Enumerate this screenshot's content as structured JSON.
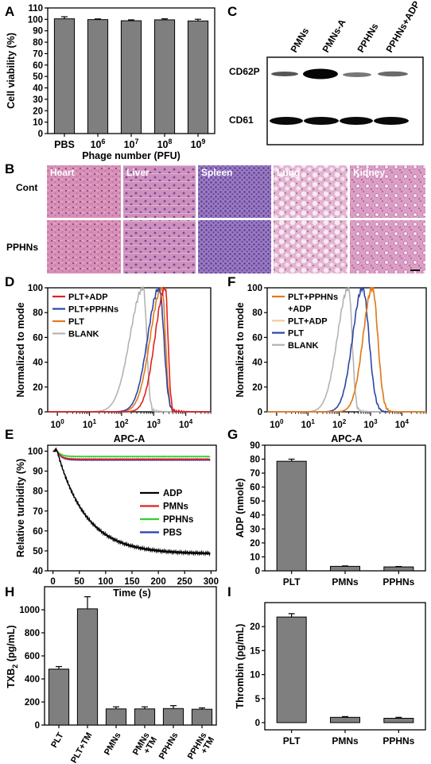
{
  "panels": {
    "A": "A",
    "B": "B",
    "C": "C",
    "D": "D",
    "E": "E",
    "F": "F",
    "G": "G",
    "H": "H",
    "I": "I"
  },
  "panel_c": {
    "lanes": [
      "PMNs",
      "PMNs-A",
      "PPHNs",
      "PPHNs+ADP"
    ],
    "rows": [
      "CD62P",
      "CD61"
    ]
  },
  "panel_b": {
    "rows": [
      "Cont",
      "PPHNs"
    ],
    "columns": [
      "Heart",
      "Liver",
      "Spleen",
      "Lung",
      "Kidney"
    ],
    "colors": {
      "he_pink": "#d98fb4",
      "he_purple": "#8a6bb8"
    }
  },
  "chart_data": [
    {
      "panel": "A",
      "type": "bar",
      "categories": [
        "PBS",
        "10^6",
        "10^7",
        "10^8",
        "10^9"
      ],
      "category_labels": [
        {
          "base": "PBS",
          "exp": ""
        },
        {
          "base": "10",
          "exp": "6"
        },
        {
          "base": "10",
          "exp": "7"
        },
        {
          "base": "10",
          "exp": "8"
        },
        {
          "base": "10",
          "exp": "9"
        }
      ],
      "values": [
        100.5,
        99.8,
        98.8,
        99.6,
        98.6
      ],
      "errors": [
        1.8,
        0.6,
        0.8,
        0.9,
        1.5
      ],
      "xlabel": "Phage number (PFU)",
      "ylabel": "Cell viability (%)",
      "ylim": [
        0,
        110
      ],
      "yticks": [
        0,
        10,
        20,
        30,
        40,
        50,
        60,
        70,
        80,
        90,
        100,
        110
      ]
    },
    {
      "panel": "D",
      "type": "line",
      "xlabel": "APC-A",
      "ylabel": "Normalized to mode",
      "xscale": "log",
      "xlim": [
        0.5,
        60000
      ],
      "ylim": [
        0,
        100
      ],
      "xtick_labels": [
        "10^0",
        "10^1",
        "10^2",
        "10^3",
        "10^4"
      ],
      "yticks": [
        0,
        20,
        40,
        60,
        80,
        100
      ],
      "legend": "top-left",
      "series": [
        {
          "name": "PLT+ADP",
          "color": "#e0211f",
          "peak": 2300,
          "sigma_l": 0.32,
          "sigma_r": 0.085
        },
        {
          "name": "PLT+PPHNs",
          "color": "#2c45a5",
          "peak": 1500,
          "sigma_l": 0.36,
          "sigma_r": 0.14
        },
        {
          "name": "PLT",
          "color": "#e07a1b",
          "peak": 1800,
          "sigma_l": 0.36,
          "sigma_r": 0.11
        },
        {
          "name": "BLANK",
          "color": "#b3b3b3",
          "peak": 480,
          "sigma_l": 0.42,
          "sigma_r": 0.1
        }
      ]
    },
    {
      "panel": "F",
      "type": "line",
      "xlabel": "APC-A",
      "ylabel": "Normalized to mode",
      "xscale": "log",
      "xlim": [
        0.5,
        60000
      ],
      "ylim": [
        0,
        100
      ],
      "xtick_labels": [
        "10^0",
        "10^1",
        "10^2",
        "10^3",
        "10^4"
      ],
      "yticks": [
        0,
        20,
        40,
        60,
        80,
        100
      ],
      "legend": "top-left",
      "legend_lines": [
        "PLT+PPHNs",
        "+ADP",
        "PLT+ADP",
        "PLT",
        "BLANK"
      ],
      "series": [
        {
          "name": "PLT+PPHNs +ADP",
          "color": "#e07a1b",
          "peak": 1150,
          "sigma_l": 0.3,
          "sigma_r": 0.17
        },
        {
          "name": "PLT+ADP",
          "color": "#f2c89a",
          "peak": 1150,
          "sigma_l": 0.3,
          "sigma_r": 0.17
        },
        {
          "name": "PLT",
          "color": "#2c45a5",
          "peak": 560,
          "sigma_l": 0.32,
          "sigma_r": 0.2
        },
        {
          "name": "BLANK",
          "color": "#b3b3b3",
          "peak": 200,
          "sigma_l": 0.36,
          "sigma_r": 0.11
        }
      ]
    },
    {
      "panel": "E",
      "type": "line",
      "xlabel": "Time (s)",
      "ylabel": "Relative turbidity (%)",
      "xlim": [
        -10,
        310
      ],
      "ylim": [
        40,
        103
      ],
      "xticks": [
        0,
        50,
        100,
        150,
        200,
        250,
        300
      ],
      "yticks": [
        40,
        50,
        60,
        70,
        80,
        90,
        100
      ],
      "legend": "center-right",
      "series": [
        {
          "name": "ADP",
          "color": "#000000",
          "start": 100,
          "plateau": 48.5,
          "tau": 55,
          "t_start": 8
        },
        {
          "name": "PMNs",
          "color": "#e0211f",
          "start": 100,
          "plateau": 96,
          "tau": 8,
          "t_start": 8
        },
        {
          "name": "PPHNs",
          "color": "#2fd22f",
          "start": 100,
          "plateau": 97.3,
          "tau": 8,
          "t_start": 8
        },
        {
          "name": "PBS",
          "color": "#2a3ab5",
          "start": 100,
          "plateau": 95.6,
          "tau": 8,
          "t_start": 8
        }
      ]
    },
    {
      "panel": "G",
      "type": "bar",
      "categories": [
        "PLT",
        "PMNs",
        "PPHNs"
      ],
      "values": [
        78.5,
        3.2,
        2.8
      ],
      "errors": [
        1.5,
        0.3,
        0.3
      ],
      "ylabel": "ADP (nmole)",
      "ylim": [
        0,
        90
      ],
      "yticks": [
        0,
        10,
        20,
        30,
        40,
        50,
        60,
        70,
        80,
        90
      ]
    },
    {
      "panel": "H",
      "type": "bar",
      "categories": [
        "PLT",
        "PLT+TM",
        "PMNs",
        "PMNs +TM",
        "PPHNs",
        "PPHNs +TM"
      ],
      "category_lines": [
        [
          "PLT"
        ],
        [
          "PLT+TM"
        ],
        [
          "PMNs"
        ],
        [
          "PMNs",
          "+TM"
        ],
        [
          "PPHNs"
        ],
        [
          "PPHNs",
          "+TM"
        ]
      ],
      "values": [
        485,
        1008,
        140,
        140,
        143,
        137
      ],
      "errors": [
        22,
        105,
        18,
        18,
        25,
        12
      ],
      "ylabel_base": "TXB",
      "ylabel_sub": "2",
      "ylabel_unit": " (pg/mL)",
      "ylim": [
        0,
        1200
      ],
      "yticks": [
        0,
        200,
        400,
        600,
        800,
        1000
      ]
    },
    {
      "panel": "I",
      "type": "bar",
      "categories": [
        "PLT",
        "PMNs",
        "PPHNs"
      ],
      "values": [
        22.0,
        1.1,
        0.9
      ],
      "errors": [
        0.7,
        0.15,
        0.2
      ],
      "ylabel": "Thrombin (pg/mL)",
      "ylim": [
        -1.5,
        25
      ],
      "yticks": [
        0,
        5,
        10,
        15,
        20
      ]
    }
  ]
}
